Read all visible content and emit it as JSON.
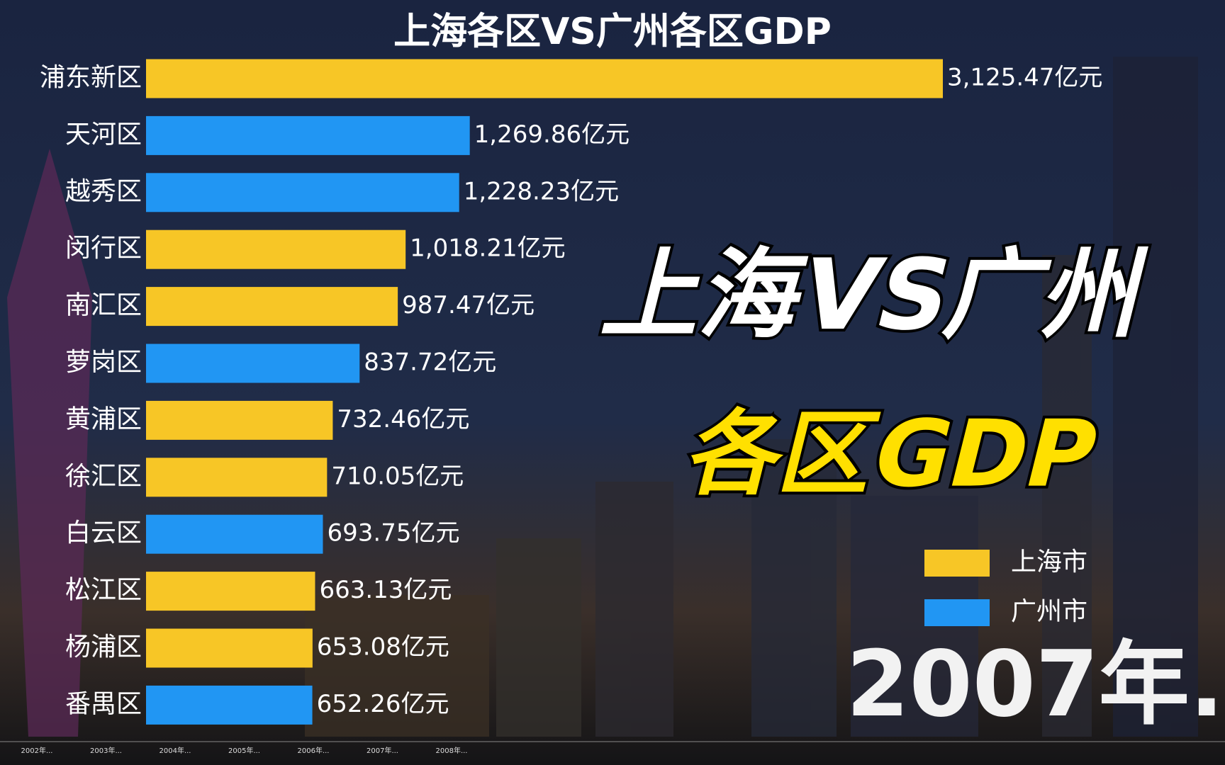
{
  "chart_data": {
    "type": "bar",
    "orientation": "horizontal",
    "title": "上海各区VS广州各区GDP",
    "categories": [
      "浦东新区",
      "天河区",
      "越秀区",
      "闵行区",
      "南汇区",
      "萝岗区",
      "黄浦区",
      "徐汇区",
      "白云区",
      "松江区",
      "杨浦区",
      "番禺区"
    ],
    "series": [
      {
        "name": "上海市",
        "color": "#f7c626",
        "values": [
          3125.47,
          null,
          null,
          1018.21,
          987.47,
          null,
          732.46,
          710.05,
          null,
          663.13,
          653.08,
          null
        ],
        "value_labels": [
          "3,125.47亿元",
          null,
          null,
          "1,018.21亿元",
          "987.47亿元",
          null,
          "732.46亿元",
          "710.05亿元",
          null,
          "663.13亿元",
          "653.08亿元",
          null
        ]
      },
      {
        "name": "广州市",
        "color": "#2196f3",
        "values": [
          null,
          1269.86,
          1228.23,
          null,
          null,
          837.72,
          null,
          null,
          693.75,
          null,
          null,
          652.26
        ],
        "value_labels": [
          null,
          "1,269.86亿元",
          "1,228.23亿元",
          null,
          null,
          "837.72亿元",
          null,
          null,
          "693.75亿元",
          null,
          null,
          "652.26亿元"
        ]
      }
    ],
    "overlay_title": "上海VS广州",
    "overlay_subtitle": "各区GDP",
    "year_label": "2007年.",
    "timeline": [
      "2002年...",
      "2003年...",
      "2004年...",
      "2005年...",
      "2006年...",
      "2007年...",
      "2008年..."
    ]
  }
}
